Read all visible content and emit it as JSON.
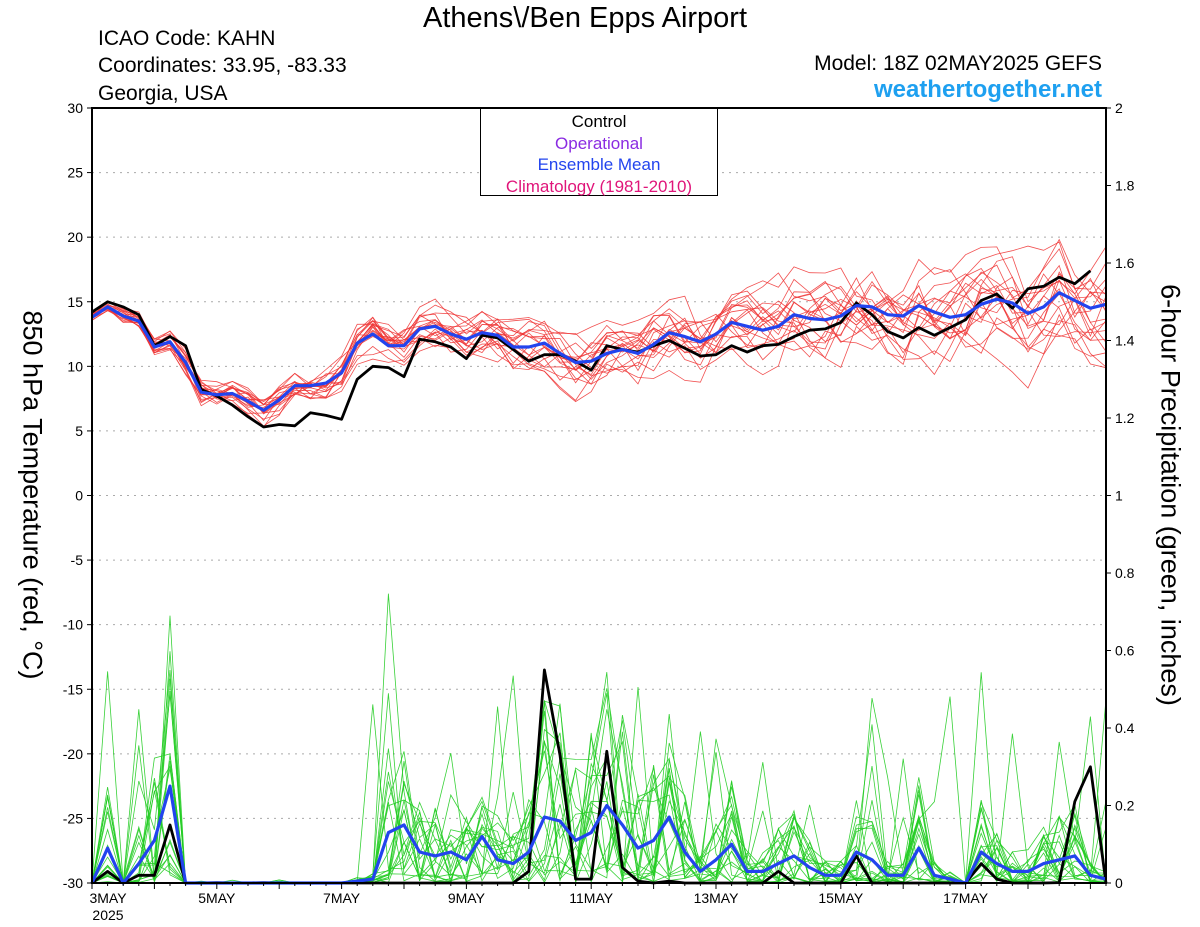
{
  "header": {
    "title": "Athens\\/Ben Epps Airport",
    "icao": "ICAO Code: KAHN",
    "coordinates": "Coordinates: 33.95, -83.33",
    "region": "Georgia, USA",
    "model": "Model: 18Z 02MAY2025 GEFS",
    "site": "weathertogether.net"
  },
  "legend": {
    "items": [
      {
        "label": "Control",
        "color": "#000000"
      },
      {
        "label": "Operational",
        "color": "#8a2be2"
      },
      {
        "label": "Ensemble Mean",
        "color": "#2244ee"
      },
      {
        "label": "Climatology (1981-2010)",
        "color": "#e0157a"
      }
    ]
  },
  "chart_data": {
    "type": "line",
    "ylabel": "850 hPa Temperature (red, °C)",
    "y2label": "6-hour Precipitation (green, inches)",
    "ylim": [
      -30,
      30
    ],
    "y2lim": [
      0,
      2
    ],
    "yticks": [
      30,
      25,
      20,
      15,
      10,
      5,
      0,
      -5,
      -10,
      -15,
      -20,
      -25,
      -30
    ],
    "y2ticks": [
      2,
      1.8,
      1.6,
      1.4,
      1.2,
      1,
      0.8,
      0.6,
      0.4,
      0.2,
      0
    ],
    "xticks": [
      {
        "step": 0,
        "label": "3MAY",
        "sub": "2025"
      },
      {
        "step": 8,
        "label": "5MAY"
      },
      {
        "step": 16,
        "label": "7MAY"
      },
      {
        "step": 24,
        "label": "9MAY"
      },
      {
        "step": 32,
        "label": "11MAY"
      },
      {
        "step": 40,
        "label": "13MAY"
      },
      {
        "step": 48,
        "label": "15MAY"
      },
      {
        "step": 56,
        "label": "17MAY"
      }
    ],
    "grid": true,
    "series": [
      {
        "name": "Control",
        "axis": "temperature",
        "color": "#000000",
        "values": [
          14.2,
          15,
          14.6,
          14,
          11.6,
          12.3,
          11.6,
          8.2,
          7.7,
          7,
          6.1,
          5.3,
          5.5,
          5.4,
          6.4,
          6.2,
          5.9,
          9,
          10,
          9.9,
          9.2,
          12.1,
          11.9,
          11.5,
          10.6,
          12.4,
          12.2,
          11.3,
          10.4,
          10.9,
          10.9,
          10.4,
          9.7,
          11.6,
          11.3,
          11.1,
          11.6,
          12,
          11.4,
          10.8,
          10.9,
          11.6,
          11.1,
          11.6,
          11.7,
          12.3,
          12.8,
          12.9,
          13.4,
          14.9,
          14,
          12.7,
          12.2,
          13,
          12.4,
          13,
          13.6,
          15.1,
          15.6,
          14.5,
          16,
          16.2,
          16.9,
          16.4,
          17.4
        ]
      },
      {
        "name": "Ensemble Mean",
        "axis": "temperature",
        "color": "#2244ee",
        "values": [
          13.8,
          14.6,
          13.9,
          13.5,
          11.5,
          11.9,
          10.3,
          8,
          7.8,
          7.9,
          7.3,
          6.6,
          7.4,
          8.5,
          8.5,
          8.7,
          9.5,
          11.8,
          12.5,
          11.6,
          11.6,
          12.9,
          13.1,
          12.5,
          12.1,
          12.6,
          12.4,
          11.5,
          11.5,
          11.8,
          11,
          10.3,
          10.4,
          11,
          11.3,
          11,
          11.7,
          12.6,
          12.3,
          11.9,
          12.5,
          13.4,
          13.1,
          12.8,
          13.1,
          14,
          13.7,
          13.6,
          13.9,
          14.7,
          14.6,
          14,
          13.9,
          14.7,
          14.2,
          13.8,
          14,
          14.8,
          15.2,
          14.9,
          14.1,
          14.6,
          15.7,
          15.1,
          14.5,
          14.8
        ]
      },
      {
        "name": "Control",
        "axis": "precipitation",
        "color": "#000000",
        "values": [
          0,
          0.03,
          0,
          0.02,
          0.02,
          0.15,
          0,
          0,
          0.001,
          0,
          0,
          0.001,
          0,
          0,
          0,
          0,
          0,
          0,
          0,
          0,
          0,
          0,
          0,
          0,
          0,
          0,
          0,
          0,
          0.03,
          0.55,
          0.33,
          0.01,
          0.01,
          0.34,
          0.04,
          0.005,
          0,
          0.005,
          0,
          0,
          0,
          0,
          0,
          0,
          0.03,
          0,
          0,
          0,
          0,
          0.07,
          0,
          0,
          0,
          0,
          0,
          0,
          0,
          0.05,
          0.01,
          0,
          0,
          0,
          0.001,
          0.21,
          0.3,
          0
        ]
      },
      {
        "name": "Ensemble Mean",
        "axis": "precipitation",
        "color": "#2244ee",
        "values": [
          0,
          0.09,
          0,
          0.05,
          0.11,
          0.25,
          0,
          0,
          0,
          0,
          0,
          0,
          0,
          0,
          0,
          0,
          0,
          0.005,
          0.01,
          0.13,
          0.15,
          0.08,
          0.07,
          0.08,
          0.06,
          0.12,
          0.06,
          0.05,
          0.08,
          0.17,
          0.16,
          0.11,
          0.13,
          0.2,
          0.15,
          0.09,
          0.11,
          0.17,
          0.08,
          0.03,
          0.06,
          0.1,
          0.03,
          0.03,
          0.05,
          0.07,
          0.04,
          0.02,
          0.02,
          0.08,
          0.06,
          0.02,
          0.02,
          0.09,
          0.02,
          0.01,
          0,
          0.08,
          0.05,
          0.03,
          0.03,
          0.05,
          0.06,
          0.07,
          0.02,
          0.01
        ]
      }
    ]
  }
}
